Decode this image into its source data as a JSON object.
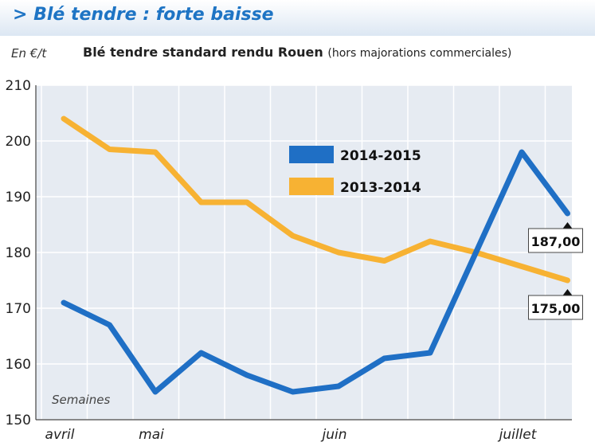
{
  "header": {
    "title": "> Blé tendre : forte baisse",
    "unit": "En €/t",
    "subtitle_main": "Blé tendre standard rendu Rouen",
    "subtitle_note": "(hors majorations commerciales)"
  },
  "chart_data": {
    "type": "line",
    "x_caption": "Semaines",
    "month_labels": [
      {
        "label": "avril",
        "week": 0
      },
      {
        "label": "mai",
        "week": 2
      },
      {
        "label": "juin",
        "week": 6
      },
      {
        "label": "juillet",
        "week": 10
      }
    ],
    "yticks": [
      150,
      160,
      170,
      180,
      190,
      200,
      210
    ],
    "ylim": [
      150,
      210
    ],
    "xlim": [
      0,
      11
    ],
    "grid": true,
    "legend_position": "center-right",
    "series": [
      {
        "name": "2014-2015",
        "color": "#1f6fc5",
        "x": [
          0,
          1,
          2,
          3,
          4,
          5,
          6,
          7,
          8,
          9,
          10,
          11
        ],
        "values": [
          171,
          167,
          155,
          162,
          158,
          155,
          156,
          161,
          162,
          180,
          198,
          187
        ],
        "end_label": "187,00"
      },
      {
        "name": "2013-2014",
        "color": "#f7b233",
        "x": [
          0,
          1,
          2,
          3,
          4,
          5,
          6,
          7,
          8,
          9,
          10,
          11
        ],
        "values": [
          204,
          198.5,
          198,
          189,
          189,
          183,
          180,
          178.5,
          182,
          180,
          177.5,
          175
        ],
        "end_label": "175,00"
      }
    ]
  }
}
